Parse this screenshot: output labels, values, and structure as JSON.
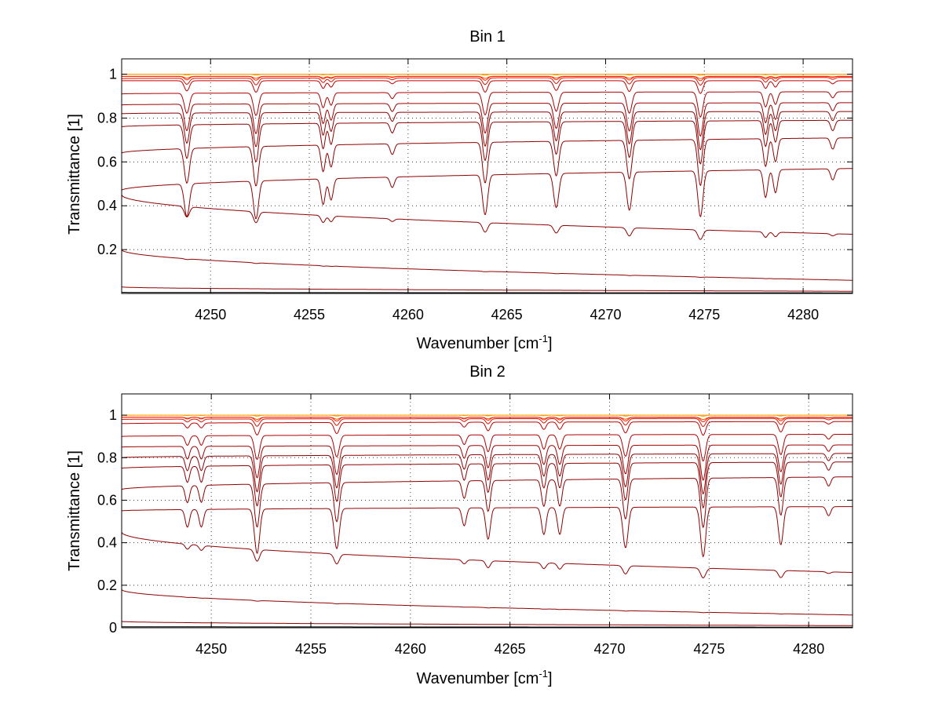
{
  "chart_data": [
    {
      "type": "line",
      "title": "Bin 1",
      "xlabel": "Wavenumber [cm",
      "xlabel_sup": "-1",
      "xlabel_suffix": "]",
      "ylabel": "Transmittance [1]",
      "xlim": [
        4245.5,
        4282.5
      ],
      "ylim": [
        0,
        1.07
      ],
      "xticks": [
        4250,
        4255,
        4260,
        4265,
        4270,
        4275,
        4280
      ],
      "xtick_labels": [
        "4250",
        "4255",
        "4260",
        "4265",
        "4270",
        "4275",
        "4280"
      ],
      "yticks": [
        0.2,
        0.4,
        0.6,
        0.8,
        1
      ],
      "ytick_labels": [
        "0.2",
        "0.4",
        "0.6",
        "0.8",
        "1"
      ],
      "grid": true,
      "lines": [
        {
          "x": [
            4245.5,
            4282.5
          ],
          "base": [
            1.0,
            1.0
          ],
          "depth_scale": 0.0,
          "color": "#ff8c00"
        },
        {
          "x": [
            4245.5,
            4282.5
          ],
          "base": [
            1.0,
            1.0
          ],
          "depth_scale": 0.01,
          "color": "#ffa500"
        },
        {
          "x": [
            4245.5,
            4282.5
          ],
          "base": [
            0.99,
            0.99
          ],
          "depth_scale": 0.02,
          "color": "#ff4500"
        },
        {
          "x": [
            4245.5,
            4282.5
          ],
          "base": [
            0.99,
            0.99
          ],
          "depth_scale": 0.04,
          "color": "#ff2000"
        },
        {
          "x": [
            4245.5,
            4282.5
          ],
          "base": [
            0.98,
            0.985
          ],
          "depth_scale": 0.07,
          "color": "#e01000"
        },
        {
          "x": [
            4245.5,
            4282.5
          ],
          "base": [
            0.97,
            0.97
          ],
          "depth_scale": 0.12,
          "color": "#c00000"
        },
        {
          "x": [
            4245.5,
            4282.5
          ],
          "base": [
            0.91,
            0.92
          ],
          "depth_scale": 0.25,
          "color": "#b00000"
        },
        {
          "x": [
            4245.5,
            4282.5
          ],
          "base": [
            0.86,
            0.87
          ],
          "depth_scale": 0.35,
          "color": "#a00000"
        },
        {
          "x": [
            4245.5,
            4282.5
          ],
          "base": [
            0.82,
            0.83
          ],
          "depth_scale": 0.42,
          "color": "#900000"
        },
        {
          "x": [
            4245.5,
            4282.5
          ],
          "base": [
            0.76,
            0.79
          ],
          "depth_scale": 0.5,
          "color": "#900000"
        },
        {
          "x": [
            4245.5,
            4282.5
          ],
          "base": [
            0.64,
            0.71
          ],
          "depth_scale": 0.6,
          "color": "#900000"
        },
        {
          "x": [
            4245.5,
            4282.5
          ],
          "base": [
            0.47,
            0.57
          ],
          "depth_scale": 0.75,
          "color": "#900000"
        },
        {
          "x": [
            4245.5,
            4282.5
          ],
          "base": [
            0.45,
            0.27
          ],
          "depth_scale": 0.3,
          "color": "#900000"
        },
        {
          "x": [
            4245.5,
            4282.5
          ],
          "base": [
            0.2,
            0.06
          ],
          "depth_scale": 0.05,
          "color": "#900000"
        },
        {
          "x": [
            4245.5,
            4282.5
          ],
          "base": [
            0.03,
            0.01
          ],
          "depth_scale": 0.0,
          "color": "#900000"
        },
        {
          "x": [
            4245.5,
            4282.5
          ],
          "base": [
            0.005,
            0.003
          ],
          "depth_scale": 0.0,
          "color": "#000000"
        }
      ],
      "absorption_lines": [
        {
          "center": 4248.8,
          "depth": 0.4,
          "width": 0.18
        },
        {
          "center": 4252.3,
          "depth": 0.45,
          "width": 0.18
        },
        {
          "center": 4255.7,
          "depth": 0.3,
          "width": 0.15
        },
        {
          "center": 4256.1,
          "depth": 0.25,
          "width": 0.15
        },
        {
          "center": 4259.2,
          "depth": 0.12,
          "width": 0.15
        },
        {
          "center": 4263.9,
          "depth": 0.45,
          "width": 0.18
        },
        {
          "center": 4267.5,
          "depth": 0.38,
          "width": 0.18
        },
        {
          "center": 4271.2,
          "depth": 0.42,
          "width": 0.18
        },
        {
          "center": 4274.8,
          "depth": 0.5,
          "width": 0.18
        },
        {
          "center": 4278.1,
          "depth": 0.3,
          "width": 0.15
        },
        {
          "center": 4278.6,
          "depth": 0.25,
          "width": 0.15
        },
        {
          "center": 4281.5,
          "depth": 0.12,
          "width": 0.15
        }
      ]
    },
    {
      "type": "line",
      "title": "Bin 2",
      "xlabel": "Wavenumber [cm",
      "xlabel_sup": "-1",
      "xlabel_suffix": "]",
      "ylabel": "Transmittance [1]",
      "xlim": [
        4245.5,
        4282.2
      ],
      "ylim": [
        0,
        1.1
      ],
      "xticks": [
        4250,
        4255,
        4260,
        4265,
        4270,
        4275,
        4280
      ],
      "xtick_labels": [
        "4250",
        "4255",
        "4260",
        "4265",
        "4270",
        "4275",
        "4280"
      ],
      "yticks": [
        0,
        0.2,
        0.4,
        0.6,
        0.8,
        1
      ],
      "ytick_labels": [
        "0",
        "0.2",
        "0.4",
        "0.6",
        "0.8",
        "1"
      ],
      "grid": true,
      "lines": [
        {
          "x": [
            4245.5,
            4282.2
          ],
          "base": [
            1.0,
            1.0
          ],
          "depth_scale": 0.0,
          "color": "#ff8c00"
        },
        {
          "x": [
            4245.5,
            4282.2
          ],
          "base": [
            1.0,
            1.0
          ],
          "depth_scale": 0.01,
          "color": "#ffa500"
        },
        {
          "x": [
            4245.5,
            4282.2
          ],
          "base": [
            0.99,
            0.99
          ],
          "depth_scale": 0.02,
          "color": "#ff4500"
        },
        {
          "x": [
            4245.5,
            4282.2
          ],
          "base": [
            0.99,
            0.99
          ],
          "depth_scale": 0.04,
          "color": "#ff2000"
        },
        {
          "x": [
            4245.5,
            4282.2
          ],
          "base": [
            0.98,
            0.985
          ],
          "depth_scale": 0.07,
          "color": "#e01000"
        },
        {
          "x": [
            4245.5,
            4282.2
          ],
          "base": [
            0.96,
            0.97
          ],
          "depth_scale": 0.12,
          "color": "#c00000"
        },
        {
          "x": [
            4245.5,
            4282.2
          ],
          "base": [
            0.9,
            0.91
          ],
          "depth_scale": 0.25,
          "color": "#b00000"
        },
        {
          "x": [
            4245.5,
            4282.2
          ],
          "base": [
            0.85,
            0.86
          ],
          "depth_scale": 0.35,
          "color": "#a00000"
        },
        {
          "x": [
            4245.5,
            4282.2
          ],
          "base": [
            0.8,
            0.82
          ],
          "depth_scale": 0.42,
          "color": "#900000"
        },
        {
          "x": [
            4245.5,
            4282.2
          ],
          "base": [
            0.75,
            0.78
          ],
          "depth_scale": 0.5,
          "color": "#900000"
        },
        {
          "x": [
            4245.5,
            4282.2
          ],
          "base": [
            0.65,
            0.71
          ],
          "depth_scale": 0.6,
          "color": "#900000"
        },
        {
          "x": [
            4245.5,
            4282.2
          ],
          "base": [
            0.55,
            0.57
          ],
          "depth_scale": 0.75,
          "color": "#900000"
        },
        {
          "x": [
            4245.5,
            4282.2
          ],
          "base": [
            0.45,
            0.26
          ],
          "depth_scale": 0.3,
          "color": "#900000"
        },
        {
          "x": [
            4245.5,
            4282.2
          ],
          "base": [
            0.18,
            0.06
          ],
          "depth_scale": 0.05,
          "color": "#900000"
        },
        {
          "x": [
            4245.5,
            4282.2
          ],
          "base": [
            0.03,
            0.01
          ],
          "depth_scale": 0.0,
          "color": "#900000"
        },
        {
          "x": [
            4245.5,
            4282.2
          ],
          "base": [
            0.005,
            0.003
          ],
          "depth_scale": 0.0,
          "color": "#000000"
        }
      ],
      "absorption_lines": [
        {
          "center": 4248.8,
          "depth": 0.2,
          "width": 0.15
        },
        {
          "center": 4249.5,
          "depth": 0.2,
          "width": 0.15
        },
        {
          "center": 4252.3,
          "depth": 0.5,
          "width": 0.18
        },
        {
          "center": 4256.3,
          "depth": 0.45,
          "width": 0.18
        },
        {
          "center": 4262.7,
          "depth": 0.2,
          "width": 0.15
        },
        {
          "center": 4263.9,
          "depth": 0.35,
          "width": 0.16
        },
        {
          "center": 4266.7,
          "depth": 0.3,
          "width": 0.16
        },
        {
          "center": 4267.5,
          "depth": 0.3,
          "width": 0.16
        },
        {
          "center": 4270.8,
          "depth": 0.45,
          "width": 0.18
        },
        {
          "center": 4274.7,
          "depth": 0.55,
          "width": 0.18
        },
        {
          "center": 4278.6,
          "depth": 0.42,
          "width": 0.17
        },
        {
          "center": 4281.0,
          "depth": 0.1,
          "width": 0.15
        }
      ]
    }
  ]
}
